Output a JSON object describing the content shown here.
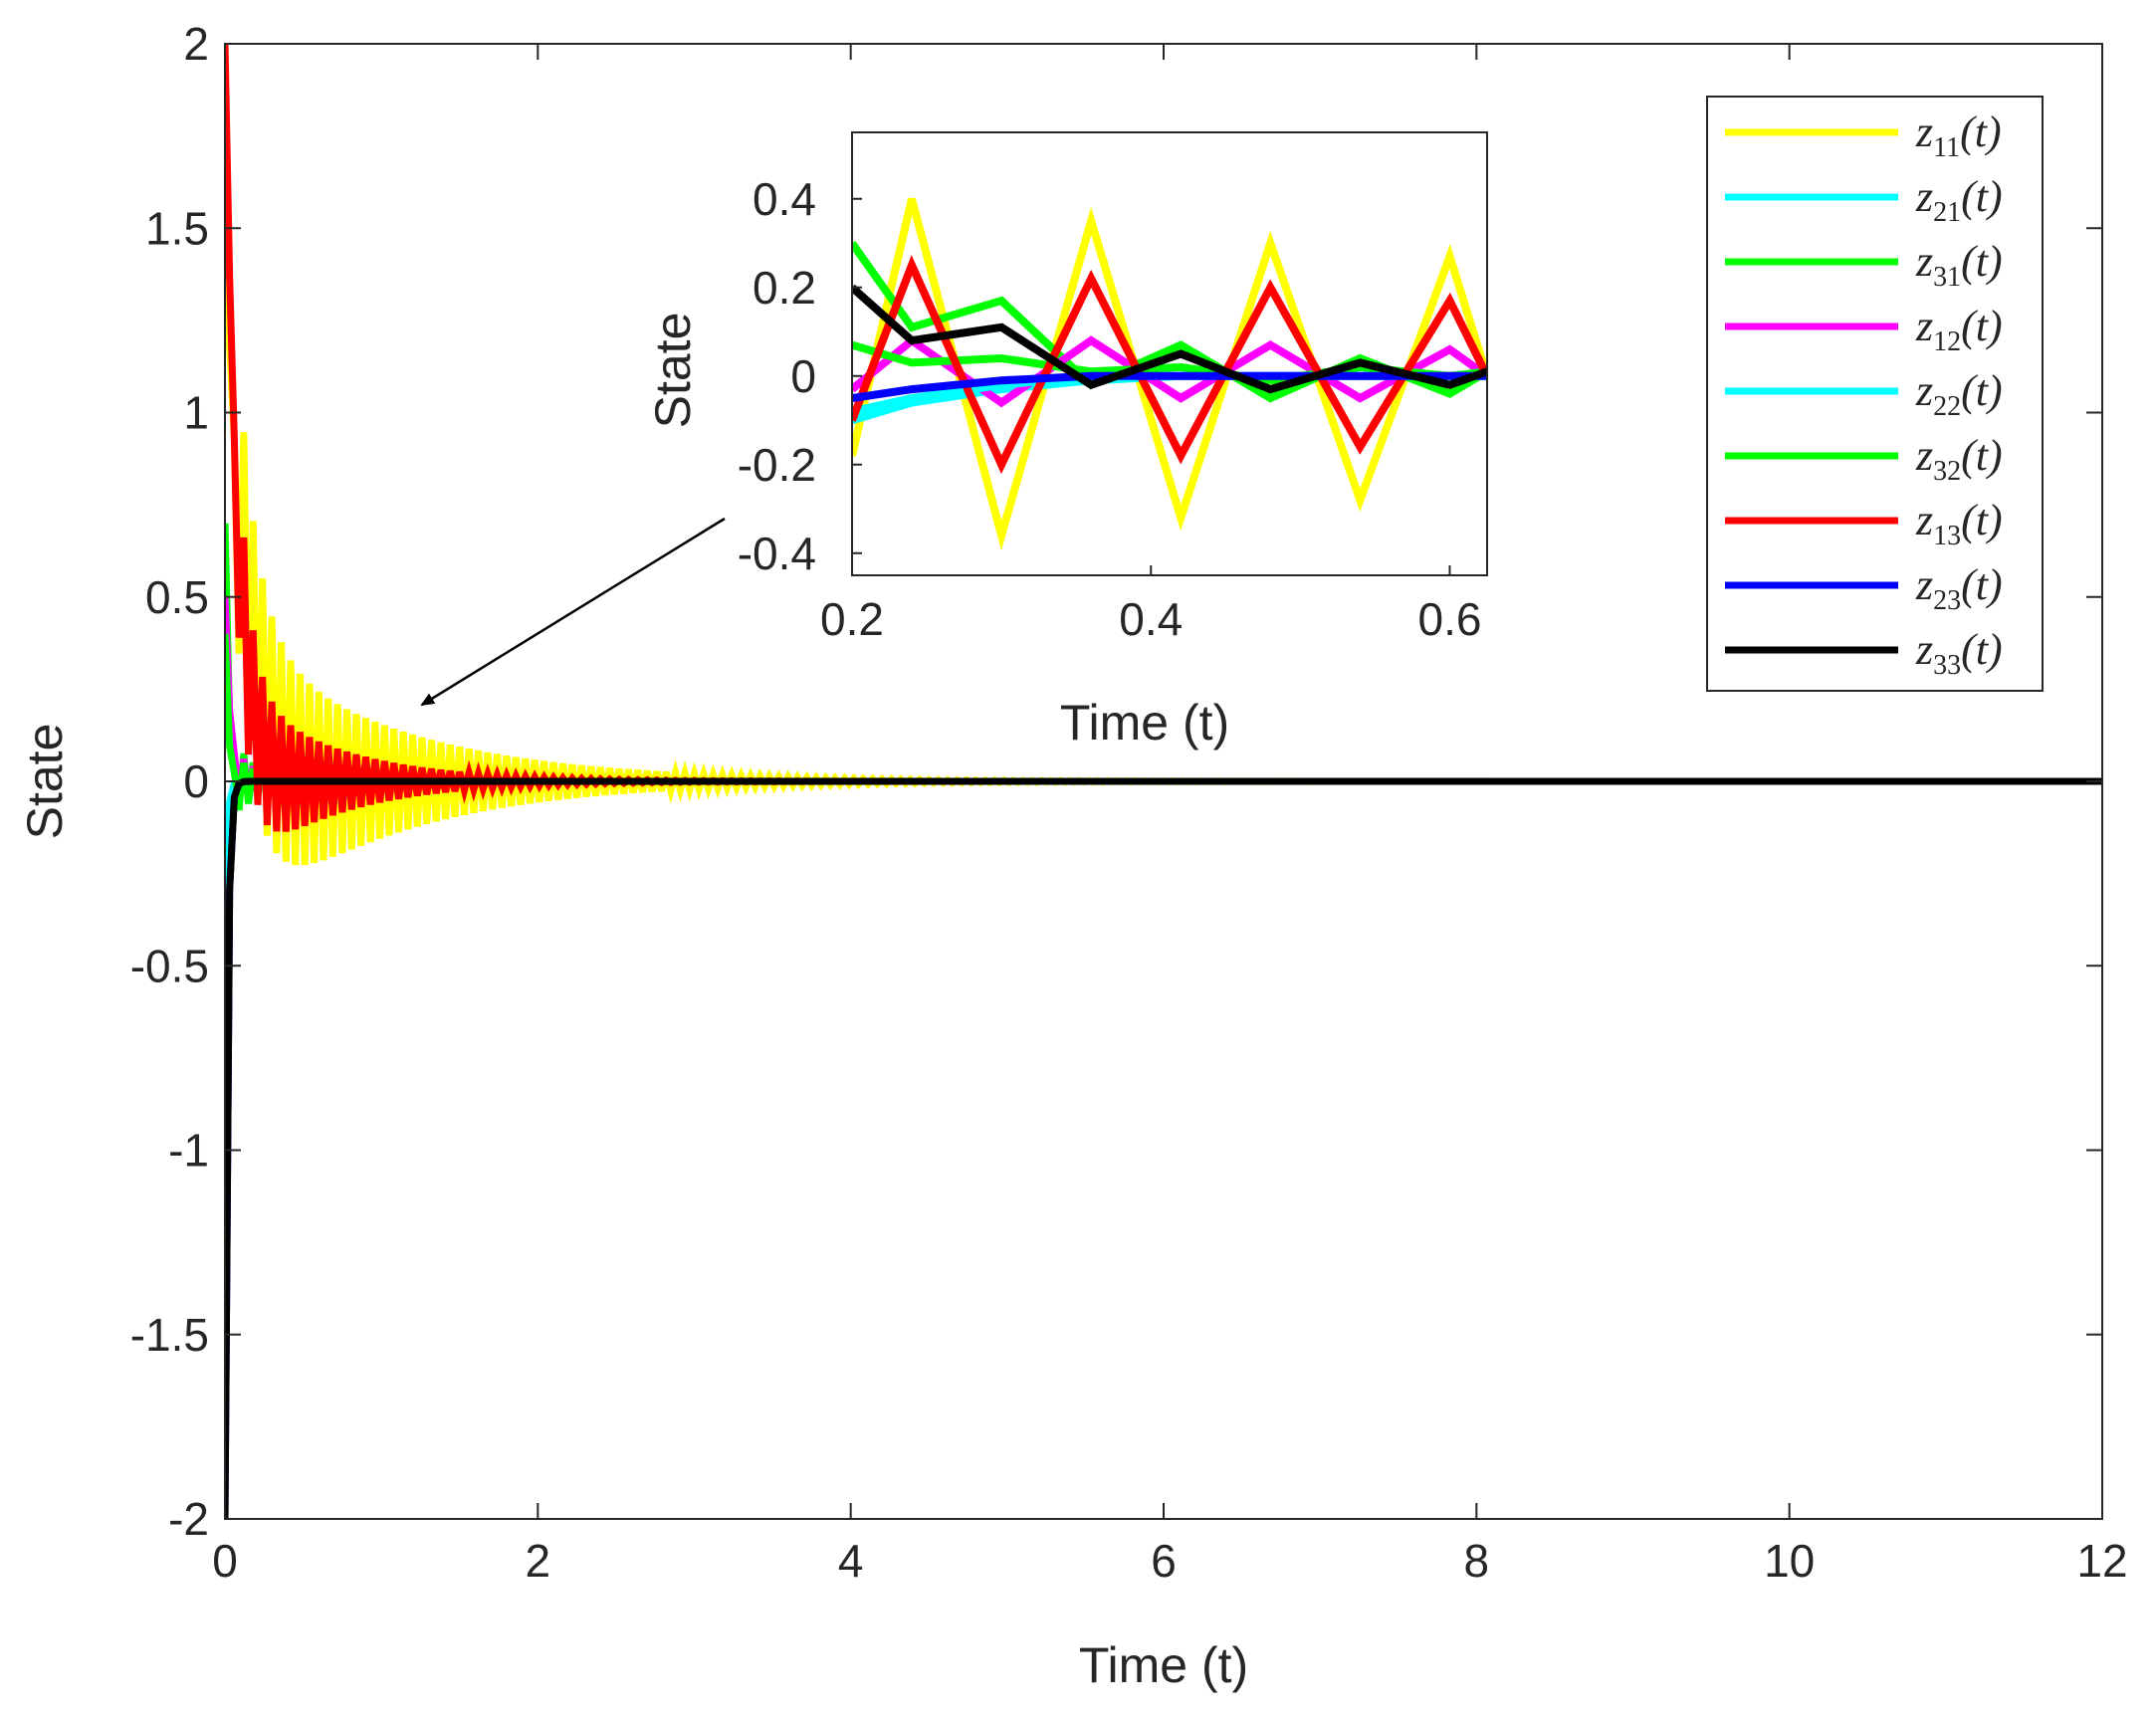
{
  "chart_data": [
    {
      "type": "line",
      "title": "",
      "xlabel": "Time (t)",
      "ylabel": "State",
      "xlim": [
        0,
        12
      ],
      "ylim": [
        -2,
        2
      ],
      "x_ticks": [
        0,
        2,
        4,
        6,
        8,
        10,
        12
      ],
      "y_ticks": [
        -2,
        -1.5,
        -1,
        -0.5,
        0,
        0.5,
        1,
        1.5,
        2
      ],
      "x_tick_labels": [
        "0",
        "2",
        "4",
        "6",
        "8",
        "10",
        "12"
      ],
      "y_tick_labels": [
        "-2",
        "-1.5",
        "-1",
        "-0.5",
        "0",
        "0.5",
        "1",
        "1.5",
        "2"
      ],
      "legend_position": "top-right",
      "series": [
        {
          "name": "z11(t)",
          "color": "#ffff00",
          "initial": 1.5,
          "osc_amplitude": 0.42,
          "decay": 1.0
        },
        {
          "name": "z21(t)",
          "color": "#00ffff",
          "initial": -1.2,
          "osc_amplitude": 0.0,
          "decay": 10.0
        },
        {
          "name": "z31(t)",
          "color": "#00ff00",
          "initial": 0.7,
          "osc_amplitude": 0.15,
          "decay": 6.0
        },
        {
          "name": "z12(t)",
          "color": "#ff00ff",
          "initial": 0.5,
          "osc_amplitude": 0.08,
          "decay": 4.0
        },
        {
          "name": "z22(t)",
          "color": "#00ffff",
          "initial": -0.6,
          "osc_amplitude": 0.0,
          "decay": 10.0
        },
        {
          "name": "z32(t)",
          "color": "#00ff00",
          "initial": 0.4,
          "osc_amplitude": 0.1,
          "decay": 6.0
        },
        {
          "name": "z13(t)",
          "color": "#ff0000",
          "initial": 2.0,
          "osc_amplitude": 0.28,
          "decay": 1.6
        },
        {
          "name": "z23(t)",
          "color": "#0000ff",
          "initial": -2.0,
          "osc_amplitude": 0.0,
          "decay": 8.0
        },
        {
          "name": "z33(t)",
          "color": "#000000",
          "initial": -2.0,
          "osc_amplitude": 0.0,
          "decay": 8.0
        }
      ]
    },
    {
      "type": "line",
      "title": "",
      "xlabel": "Time (t)",
      "ylabel": "State",
      "xlim": [
        0.2,
        0.625
      ],
      "ylim": [
        -0.45,
        0.55
      ],
      "x_ticks": [
        0.2,
        0.4,
        0.6
      ],
      "y_ticks": [
        -0.4,
        -0.2,
        0,
        0.2,
        0.4
      ],
      "x_tick_labels": [
        "0.2",
        "0.4",
        "0.6"
      ],
      "y_tick_labels": [
        "-0.4",
        "-0.2",
        "0",
        "0.2",
        "0.4"
      ],
      "x": [
        0.2,
        0.24,
        0.3,
        0.36,
        0.42,
        0.48,
        0.54,
        0.6,
        0.625
      ],
      "series": [
        {
          "name": "z11(t)",
          "color": "#ffff00",
          "values": [
            -0.18,
            0.4,
            -0.36,
            0.35,
            -0.32,
            0.3,
            -0.28,
            0.27,
            0.0
          ]
        },
        {
          "name": "z21(t)",
          "color": "#00ffff",
          "values": [
            -0.1,
            -0.06,
            -0.03,
            -0.01,
            0.0,
            0.0,
            0.0,
            0.0,
            0.0
          ]
        },
        {
          "name": "z31(t)",
          "color": "#00ff00",
          "values": [
            0.3,
            0.11,
            0.17,
            -0.02,
            0.07,
            -0.05,
            0.04,
            -0.04,
            0.01
          ]
        },
        {
          "name": "z12(t)",
          "color": "#ff00ff",
          "values": [
            -0.03,
            0.08,
            -0.06,
            0.08,
            -0.05,
            0.07,
            -0.05,
            0.06,
            0.0
          ]
        },
        {
          "name": "z22(t)",
          "color": "#00ffff",
          "values": [
            -0.08,
            -0.05,
            -0.02,
            0.0,
            0.0,
            0.0,
            0.0,
            0.0,
            0.0
          ]
        },
        {
          "name": "z32(t)",
          "color": "#00ff00",
          "values": [
            0.07,
            0.03,
            0.04,
            0.01,
            0.02,
            -0.01,
            0.02,
            0.0,
            0.01
          ]
        },
        {
          "name": "z13(t)",
          "color": "#ff0000",
          "values": [
            -0.1,
            0.25,
            -0.2,
            0.22,
            -0.18,
            0.2,
            -0.16,
            0.17,
            0.0
          ]
        },
        {
          "name": "z23(t)",
          "color": "#0000ff",
          "values": [
            -0.05,
            -0.03,
            -0.01,
            0.0,
            0.0,
            0.0,
            0.0,
            0.0,
            0.0
          ]
        },
        {
          "name": "z33(t)",
          "color": "#000000",
          "values": [
            0.2,
            0.08,
            0.11,
            -0.02,
            0.05,
            -0.03,
            0.03,
            -0.02,
            0.01
          ]
        }
      ]
    }
  ],
  "legend": [
    {
      "base": "z",
      "sub": "11",
      "suffix": "(t)",
      "color": "#ffff00"
    },
    {
      "base": "z",
      "sub": "21",
      "suffix": "(t)",
      "color": "#00ffff"
    },
    {
      "base": "z",
      "sub": "31",
      "suffix": "(t)",
      "color": "#00ff00"
    },
    {
      "base": "z",
      "sub": "12",
      "suffix": "(t)",
      "color": "#ff00ff"
    },
    {
      "base": "z",
      "sub": "22",
      "suffix": "(t)",
      "color": "#00ffff"
    },
    {
      "base": "z",
      "sub": "32",
      "suffix": "(t)",
      "color": "#00ff00"
    },
    {
      "base": "z",
      "sub": "13",
      "suffix": "(t)",
      "color": "#ff0000"
    },
    {
      "base": "z",
      "sub": "23",
      "suffix": "(t)",
      "color": "#0000ff"
    },
    {
      "base": "z",
      "sub": "33",
      "suffix": "(t)",
      "color": "#000000"
    }
  ]
}
